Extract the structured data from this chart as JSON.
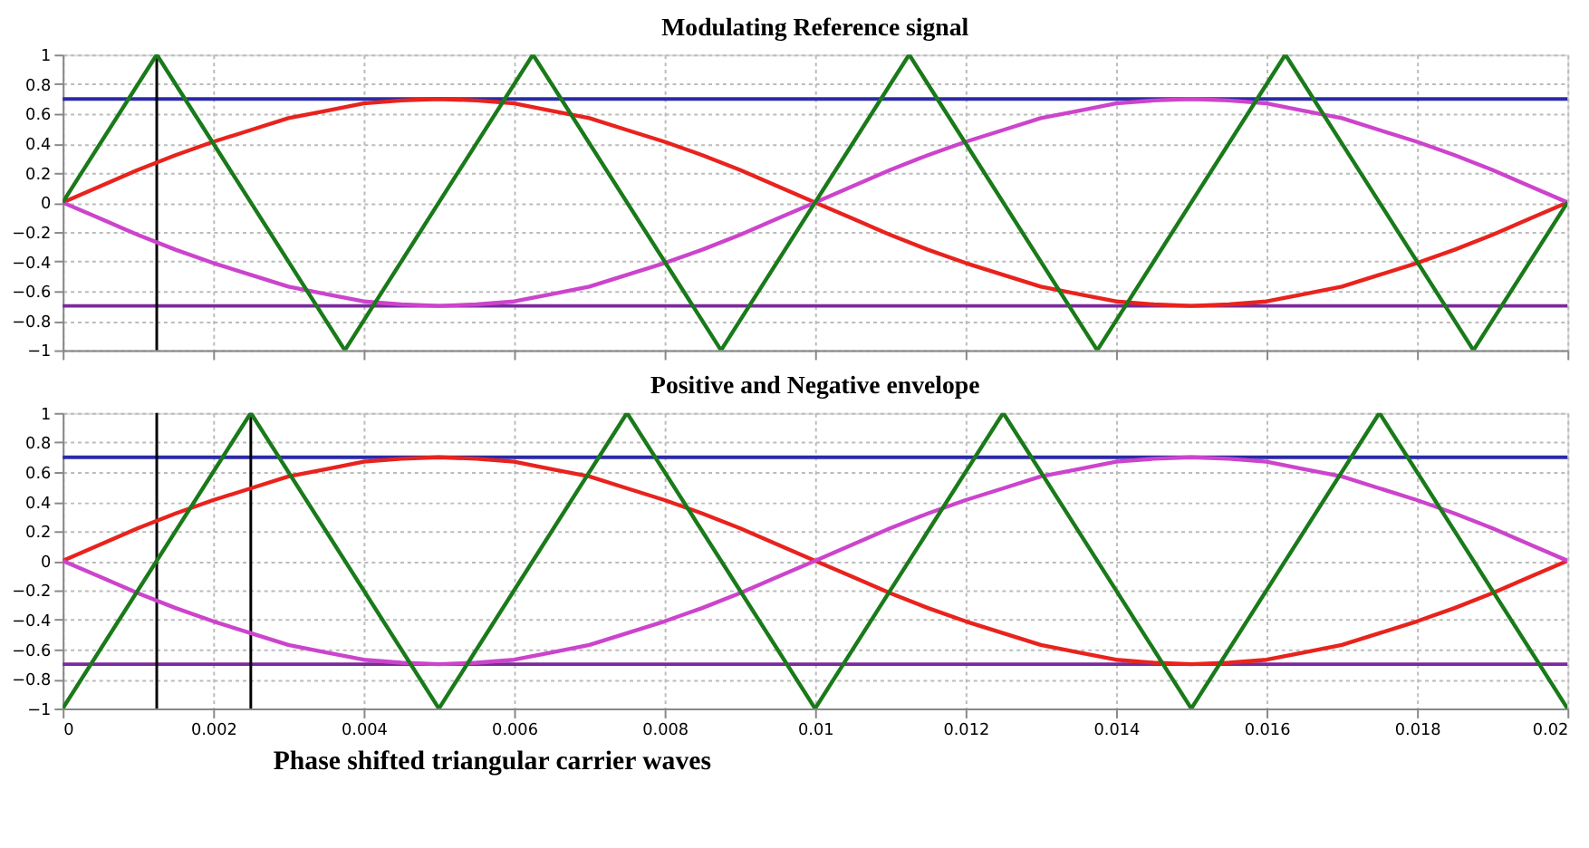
{
  "chart_data": [
    {
      "type": "line",
      "title": "Modulating Reference signal",
      "x": [
        0,
        0.0005,
        0.001,
        0.0015,
        0.002,
        0.0025,
        0.003,
        0.0035,
        0.004,
        0.0045,
        0.005,
        0.0055,
        0.006,
        0.0065,
        0.007,
        0.0075,
        0.008,
        0.0085,
        0.009,
        0.0095,
        0.01,
        0.0105,
        0.011,
        0.0115,
        0.012,
        0.0125,
        0.013,
        0.0135,
        0.014,
        0.0145,
        0.015,
        0.0155,
        0.016,
        0.0165,
        0.017,
        0.0175,
        0.018,
        0.0185,
        0.019,
        0.0195,
        0.02
      ],
      "xlim": [
        0,
        0.02
      ],
      "xticks": [
        0,
        0.002,
        0.004,
        0.006,
        0.008,
        0.01,
        0.012,
        0.014,
        0.016,
        0.018,
        0.02
      ],
      "ylim": [
        -1,
        1
      ],
      "yticks": [
        -1,
        -0.8,
        -0.6,
        -0.4,
        -0.2,
        0,
        0.2,
        0.4,
        0.6,
        0.8,
        1
      ],
      "grid": true,
      "tick_labels": "y",
      "series": [
        {
          "color": "#e8231e",
          "values": [
            0,
            0.11,
            0.22,
            0.32,
            0.41,
            0.49,
            0.57,
            0.62,
            0.67,
            0.69,
            0.7,
            0.69,
            0.67,
            0.62,
            0.57,
            0.49,
            0.41,
            0.32,
            0.22,
            0.11,
            0,
            -0.11,
            -0.22,
            -0.32,
            -0.41,
            -0.49,
            -0.57,
            -0.62,
            -0.67,
            -0.69,
            -0.7,
            -0.69,
            -0.67,
            -0.62,
            -0.57,
            -0.49,
            -0.41,
            -0.32,
            -0.22,
            -0.11,
            0
          ]
        },
        {
          "color": "#cc44cc",
          "values": [
            0,
            -0.11,
            -0.22,
            -0.32,
            -0.41,
            -0.49,
            -0.57,
            -0.62,
            -0.67,
            -0.69,
            -0.7,
            -0.69,
            -0.67,
            -0.62,
            -0.57,
            -0.49,
            -0.41,
            -0.32,
            -0.22,
            -0.11,
            0,
            0.11,
            0.22,
            0.32,
            0.41,
            0.49,
            0.57,
            0.62,
            0.67,
            0.69,
            0.7,
            0.69,
            0.67,
            0.62,
            0.57,
            0.49,
            0.41,
            0.32,
            0.22,
            0.11,
            0
          ]
        },
        {
          "color": "#1a7a1a",
          "x": [
            0,
            0.00125,
            0.00375,
            0.00625,
            0.00875,
            0.01125,
            0.01375,
            0.01625,
            0.01875,
            0.02
          ],
          "values": [
            0,
            1,
            -1,
            1,
            -1,
            1,
            -1,
            1,
            -1,
            0
          ]
        }
      ],
      "ref_lines": [
        {
          "axis": "y",
          "value": 0.7,
          "color": "#2a2aa8"
        },
        {
          "axis": "y",
          "value": -0.7,
          "color": "#7a2a9a"
        },
        {
          "axis": "x",
          "value": 0.00125,
          "color": "#000000"
        }
      ]
    },
    {
      "type": "line",
      "title": "Positive and Negative envelope",
      "x": [
        0,
        0.0005,
        0.001,
        0.0015,
        0.002,
        0.0025,
        0.003,
        0.0035,
        0.004,
        0.0045,
        0.005,
        0.0055,
        0.006,
        0.0065,
        0.007,
        0.0075,
        0.008,
        0.0085,
        0.009,
        0.0095,
        0.01,
        0.0105,
        0.011,
        0.0115,
        0.012,
        0.0125,
        0.013,
        0.0135,
        0.014,
        0.0145,
        0.015,
        0.0155,
        0.016,
        0.0165,
        0.017,
        0.0175,
        0.018,
        0.0185,
        0.019,
        0.0195,
        0.02
      ],
      "xlim": [
        0,
        0.02
      ],
      "xticks": [
        0,
        0.002,
        0.004,
        0.006,
        0.008,
        0.01,
        0.012,
        0.014,
        0.016,
        0.018,
        0.02
      ],
      "ylim": [
        -1,
        1
      ],
      "yticks": [
        -1,
        -0.8,
        -0.6,
        -0.4,
        -0.2,
        0,
        0.2,
        0.4,
        0.6,
        0.8,
        1
      ],
      "grid": true,
      "series": [
        {
          "color": "#e8231e",
          "values": [
            0,
            0.11,
            0.22,
            0.32,
            0.41,
            0.49,
            0.57,
            0.62,
            0.67,
            0.69,
            0.7,
            0.69,
            0.67,
            0.62,
            0.57,
            0.49,
            0.41,
            0.32,
            0.22,
            0.11,
            0,
            -0.11,
            -0.22,
            -0.32,
            -0.41,
            -0.49,
            -0.57,
            -0.62,
            -0.67,
            -0.69,
            -0.7,
            -0.69,
            -0.67,
            -0.62,
            -0.57,
            -0.49,
            -0.41,
            -0.32,
            -0.22,
            -0.11,
            0
          ]
        },
        {
          "color": "#cc44cc",
          "values": [
            0,
            -0.11,
            -0.22,
            -0.32,
            -0.41,
            -0.49,
            -0.57,
            -0.62,
            -0.67,
            -0.69,
            -0.7,
            -0.69,
            -0.67,
            -0.62,
            -0.57,
            -0.49,
            -0.41,
            -0.32,
            -0.22,
            -0.11,
            0,
            0.11,
            0.22,
            0.32,
            0.41,
            0.49,
            0.57,
            0.62,
            0.67,
            0.69,
            0.7,
            0.69,
            0.67,
            0.62,
            0.57,
            0.49,
            0.41,
            0.32,
            0.22,
            0.11,
            0
          ]
        },
        {
          "color": "#1a7a1a",
          "x": [
            0,
            0.0025,
            0.005,
            0.0075,
            0.01,
            0.0125,
            0.015,
            0.0175,
            0.02
          ],
          "values": [
            -1,
            1,
            -1,
            1,
            -1,
            1,
            -1,
            1,
            -1
          ]
        }
      ],
      "ref_lines": [
        {
          "axis": "y",
          "value": 0.7,
          "color": "#2a2aa8"
        },
        {
          "axis": "y",
          "value": -0.7,
          "color": "#7a2a9a"
        },
        {
          "axis": "x",
          "value": 0.00125,
          "color": "#000000"
        },
        {
          "axis": "x",
          "value": 0.0025,
          "color": "#000000"
        }
      ],
      "annotations": [
        "Phase shifted triangular carrier waves"
      ]
    }
  ]
}
